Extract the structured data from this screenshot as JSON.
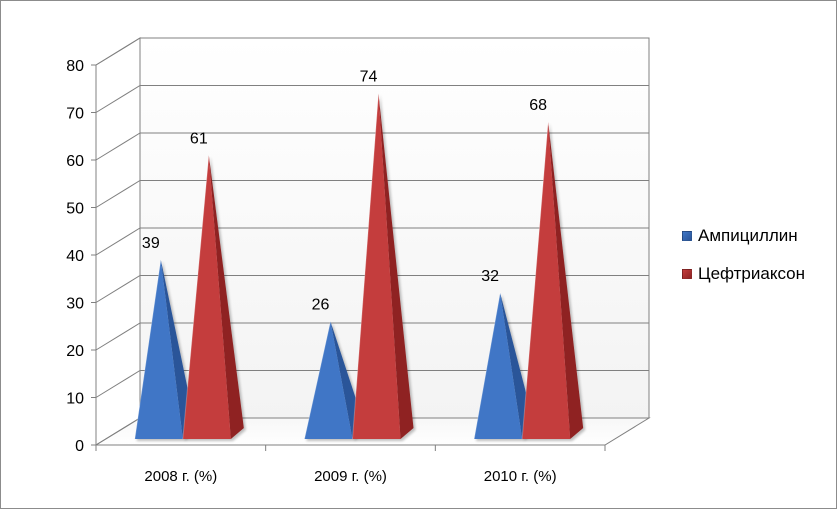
{
  "chart_data": {
    "type": "bar",
    "style": "3d-pyramid",
    "categories": [
      "2008 г. (%)",
      "2009 г. (%)",
      "2010 г. (%)"
    ],
    "series": [
      {
        "name": "Ампициллин",
        "values": [
          39,
          26,
          32
        ],
        "color": "#3f76c6",
        "color_dark": "#2a5599",
        "icon": "blue-pyramid-icon"
      },
      {
        "name": "Цефтриаксон",
        "values": [
          61,
          74,
          68
        ],
        "color": "#c43c3c",
        "color_dark": "#8f2424",
        "icon": "red-pyramid-icon"
      }
    ],
    "yticks": [
      "0",
      "10",
      "20",
      "30",
      "40",
      "50",
      "60",
      "70",
      "80"
    ],
    "data_labels": [
      [
        "39",
        "26",
        "32"
      ],
      [
        "61",
        "74",
        "68"
      ]
    ],
    "ylim": [
      0,
      80
    ],
    "ystep": 10,
    "grid": true,
    "legend": "right",
    "title": "",
    "xlabel": "",
    "ylabel": ""
  }
}
